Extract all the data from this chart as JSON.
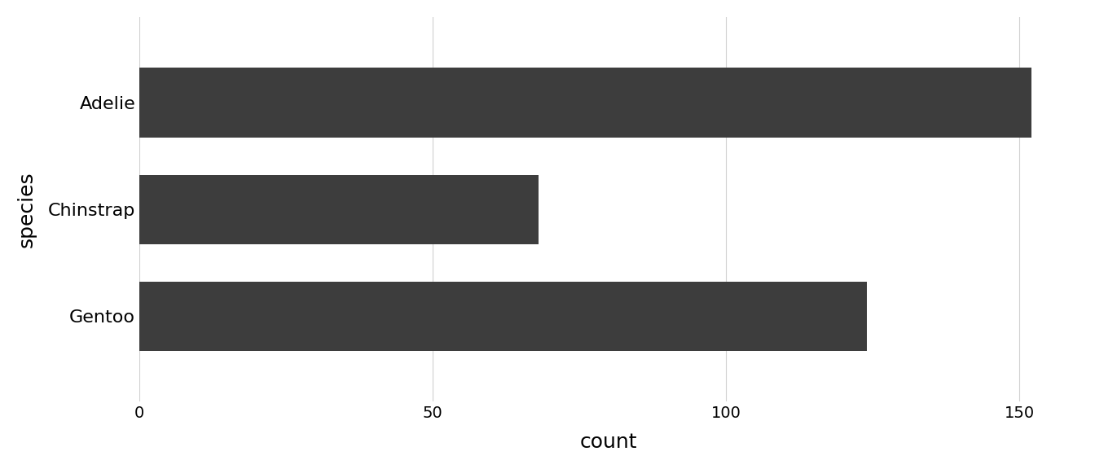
{
  "species": [
    "Adelie",
    "Chinstrap",
    "Gentoo"
  ],
  "counts": [
    152,
    68,
    124
  ],
  "bar_color": "#3d3d3d",
  "xlabel": "count",
  "ylabel": "species",
  "xlim": [
    0,
    160
  ],
  "xticks": [
    0,
    50,
    100,
    150
  ],
  "background_color": "#ffffff",
  "grid_color": "#d0d0d0",
  "bar_height": 0.65,
  "label_fontsize": 16,
  "tick_fontsize": 14
}
